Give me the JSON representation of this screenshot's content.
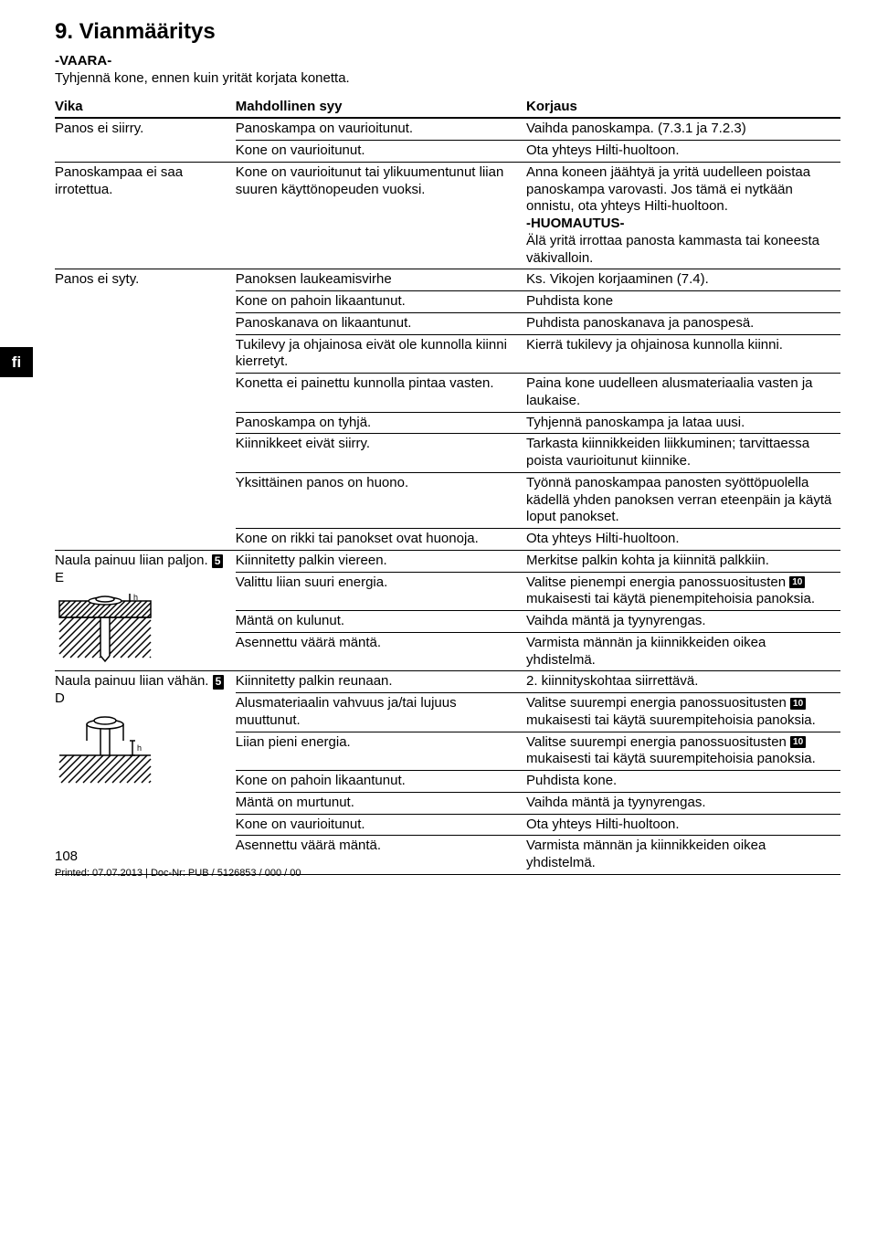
{
  "title": "9. Vianmääritys",
  "danger": "-VAARA-",
  "instruction": "Tyhjennä kone, ennen kuin yrität korjata konetta.",
  "headers": {
    "fault": "Vika",
    "cause": "Mahdollinen syy",
    "remedy": "Korjaus"
  },
  "lang_tab": "fi",
  "groups": [
    {
      "fault": "Panos ei siirry.",
      "rows": [
        {
          "cause": "Panoskampa on vaurioitunut.",
          "remedy": "Vaihda panoskampa. (7.3.1 ja 7.2.3)"
        },
        {
          "cause": "Kone on vaurioitunut.",
          "remedy": "Ota yhteys Hilti-huoltoon."
        }
      ]
    },
    {
      "fault": "Panoskampaa ei saa irrotettua.",
      "rows": [
        {
          "cause": "Kone on vaurioitunut tai ylikuumentunut liian suuren käyttönopeuden vuoksi.",
          "remedy": "Anna koneen jäähtyä ja yritä uudelleen poistaa panoskampa varovasti. Jos tämä ei nytkään onnistu, ota yhteys Hilti-huoltoon.\n-HUOMAUTUS-\nÄlä yritä irrottaa panosta kammasta tai koneesta väkivalloin.",
          "remedy_bold": "-HUOMAUTUS-"
        }
      ]
    },
    {
      "fault": "Panos ei syty.",
      "rows": [
        {
          "cause": "Panoksen laukeamisvirhe",
          "remedy": "Ks. Vikojen korjaaminen (7.4)."
        },
        {
          "cause": "Kone on pahoin likaantunut.",
          "remedy": "Puhdista kone"
        },
        {
          "cause": "Panoskanava on likaantunut.",
          "remedy": "Puhdista panoskanava ja panospesä."
        },
        {
          "cause": "Tukilevy ja ohjainosa eivät ole kunnolla kiinni kierretyt.",
          "remedy": "Kierrä tukilevy ja ohjainosa kunnolla kiinni."
        },
        {
          "cause": "Konetta ei painettu kunnolla pintaa vasten.",
          "remedy": "Paina kone uudelleen alusmateriaalia vasten ja laukaise."
        },
        {
          "cause": "Panoskampa on tyhjä.",
          "remedy": "Tyhjennä panoskampa ja lataa uusi."
        },
        {
          "cause": "Kiinnikkeet eivät siirry.",
          "remedy": "Tarkasta kiinnikkeiden liikkuminen; tarvittaessa poista vaurioitunut kiinnike."
        },
        {
          "cause": "Yksittäinen panos on huono.",
          "remedy": "Työnnä panoskampaa panosten syöttöpuolella kädellä yhden panoksen verran eteenpäin ja käytä loput panokset."
        },
        {
          "cause": "Kone on rikki tai panokset ovat huonoja.",
          "remedy": "Ota yhteys Hilti-huoltoon."
        }
      ]
    },
    {
      "fault": "Naula painuu liian paljon.",
      "fault_ref": "5",
      "fault_ref_suffix": "E",
      "diagram": "deep",
      "rows": [
        {
          "cause": "Kiinnitetty palkin viereen.",
          "remedy": "Merkitse palkin kohta ja kiinnitä palkkiin."
        },
        {
          "cause": "Valittu liian suuri energia.",
          "remedy_pre": "Valitse pienempi energia panossuositusten ",
          "remedy_ref": "10",
          "remedy_post": " mukaisesti tai käytä pienempitehoisia panoksia."
        },
        {
          "cause": "Mäntä on kulunut.",
          "remedy": "Vaihda mäntä ja tyynyrengas."
        },
        {
          "cause": "Asennettu väärä mäntä.",
          "remedy": "Varmista männän ja kiinnikkeiden oikea yhdistelmä."
        }
      ]
    },
    {
      "fault": "Naula painuu liian vähän.",
      "fault_ref": "5",
      "fault_ref_suffix": "D",
      "diagram": "shallow",
      "rows": [
        {
          "cause": "Kiinnitetty palkin reunaan.",
          "remedy": "2. kiinnityskohtaa siirrettävä."
        },
        {
          "cause": "Alusmateriaalin vahvuus ja/tai lujuus muuttunut.",
          "remedy_pre": "Valitse suurempi energia panossuositusten ",
          "remedy_ref": "10",
          "remedy_post": " mukaisesti tai käytä suurempitehoisia panoksia."
        },
        {
          "cause": "Liian pieni energia.",
          "remedy_pre": "Valitse suurempi energia panossuositusten ",
          "remedy_ref": "10",
          "remedy_post": " mukaisesti tai käytä suurempitehoisia panoksia."
        },
        {
          "cause": "Kone on pahoin likaantunut.",
          "remedy": "Puhdista kone."
        },
        {
          "cause": "Mäntä on murtunut.",
          "remedy": "Vaihda mäntä ja tyynyrengas."
        },
        {
          "cause": "Kone on vaurioitunut.",
          "remedy": "Ota yhteys Hilti-huoltoon."
        },
        {
          "cause": "Asennettu väärä mäntä.",
          "remedy": "Varmista männän ja kiinnikkeiden oikea yhdistelmä."
        }
      ]
    }
  ],
  "footer": {
    "page": "108",
    "print_line": "Printed: 07.07.2013 | Doc-Nr: PUB / 5126853 / 000 / 00"
  }
}
